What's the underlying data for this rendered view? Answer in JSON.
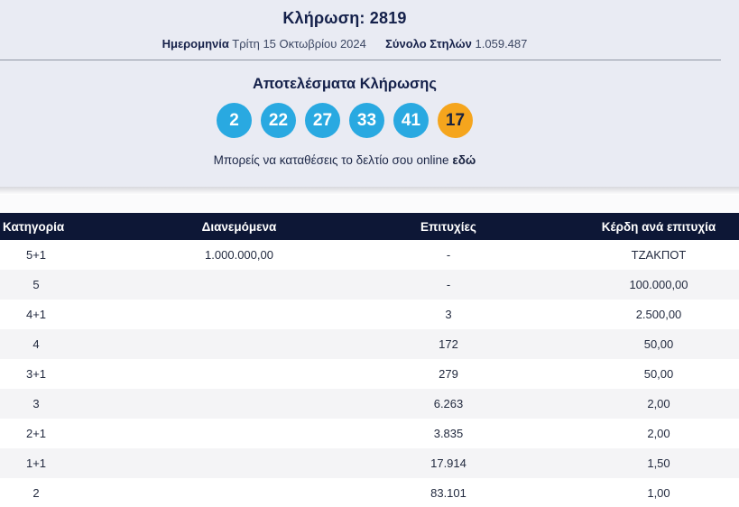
{
  "header": {
    "draw_title": "Κλήρωση: 2819",
    "date_label": "Ημερομηνία",
    "date_value": "Τρίτη 15 Οκτωβρίου 2024",
    "columns_label": "Σύνολο Στηλών",
    "columns_value": "1.059.487"
  },
  "results": {
    "title": "Αποτελέσματα Κλήρωσης",
    "numbers": [
      "2",
      "22",
      "27",
      "33",
      "41"
    ],
    "joker": "17",
    "cta_text": "Μπορείς να καταθέσεις το δελτίο σου online",
    "cta_link": "εδώ"
  },
  "colors": {
    "number_ball_blue": "#29a9e1",
    "joker_ball_orange": "#f5a51d",
    "table_header_navy": "#0d1736",
    "band_background": "#e9ebf3"
  },
  "table": {
    "headers": [
      "Κατηγορία",
      "Διανεμόμενα",
      "Επιτυχίες",
      "Κέρδη ανά επιτυχία"
    ],
    "rows": [
      {
        "category": "5+1",
        "distributed": "1.000.000,00",
        "winners": "-",
        "prize": "ΤΖΑΚΠΟΤ"
      },
      {
        "category": "5",
        "distributed": "",
        "winners": "-",
        "prize": "100.000,00"
      },
      {
        "category": "4+1",
        "distributed": "",
        "winners": "3",
        "prize": "2.500,00"
      },
      {
        "category": "4",
        "distributed": "",
        "winners": "172",
        "prize": "50,00"
      },
      {
        "category": "3+1",
        "distributed": "",
        "winners": "279",
        "prize": "50,00"
      },
      {
        "category": "3",
        "distributed": "",
        "winners": "6.263",
        "prize": "2,00"
      },
      {
        "category": "2+1",
        "distributed": "",
        "winners": "3.835",
        "prize": "2,00"
      },
      {
        "category": "1+1",
        "distributed": "",
        "winners": "17.914",
        "prize": "1,50"
      },
      {
        "category": "2",
        "distributed": "",
        "winners": "83.101",
        "prize": "1,00"
      }
    ]
  }
}
